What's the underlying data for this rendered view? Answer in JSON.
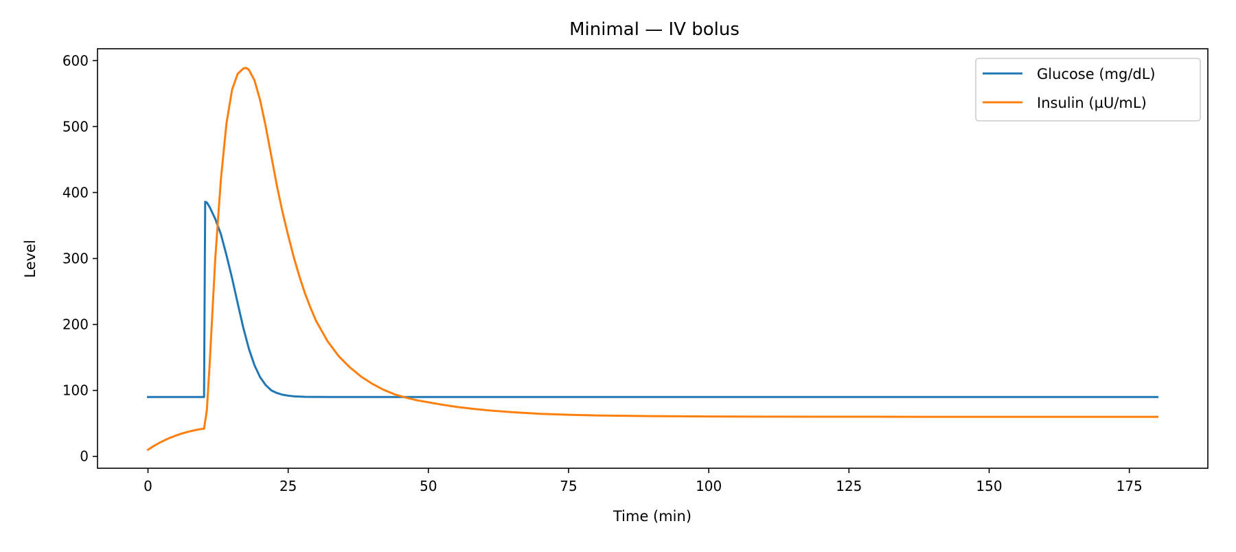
{
  "chart_data": {
    "type": "line",
    "title": "Minimal — IV bolus",
    "xlabel": "Time (min)",
    "ylabel": "Level",
    "xlim": [
      -9,
      189
    ],
    "ylim": [
      -18,
      618
    ],
    "xticks": [
      0,
      25,
      50,
      75,
      100,
      125,
      150,
      175
    ],
    "yticks": [
      0,
      100,
      200,
      300,
      400,
      500,
      600
    ],
    "grid": false,
    "legend_position": "top-right",
    "series": [
      {
        "name": "Glucose (mg/dL)",
        "color": "#1f77b4",
        "x": [
          0,
          2,
          4,
          6,
          8,
          10,
          10.2,
          10.5,
          11,
          12,
          13,
          14,
          15,
          16,
          17,
          18,
          19,
          20,
          21,
          22,
          23,
          24,
          25,
          26,
          27,
          28,
          30,
          33,
          36,
          40,
          50,
          60,
          80,
          100,
          120,
          140,
          160,
          180
        ],
        "y": [
          90,
          90,
          90,
          90,
          90,
          90,
          386,
          385,
          378,
          360,
          337,
          305,
          270,
          232,
          195,
          163,
          138,
          120,
          108,
          100,
          96,
          93.5,
          92,
          91,
          90.6,
          90.3,
          90.1,
          90,
          90,
          90,
          90,
          90,
          90,
          90,
          90,
          90,
          90,
          90
        ]
      },
      {
        "name": "Insulin (µU/mL)",
        "color": "#ff7f0e",
        "x": [
          0,
          1,
          2,
          3,
          4,
          5,
          6,
          7,
          8,
          9,
          10,
          10.5,
          11,
          11.5,
          12,
          13,
          14,
          15,
          16,
          17,
          17.5,
          18,
          19,
          20,
          21,
          22,
          23,
          24,
          25,
          26,
          27,
          28,
          29,
          30,
          32,
          34,
          36,
          38,
          40,
          42,
          44,
          46,
          48,
          50,
          52,
          55,
          58,
          61,
          65,
          70,
          75,
          80,
          90,
          100,
          110,
          120,
          140,
          160,
          180
        ],
        "y": [
          10,
          15.5,
          20.3,
          24.6,
          28.4,
          31.6,
          34.5,
          37,
          39,
          40.8,
          42,
          70,
          140,
          220,
          300,
          420,
          505,
          556,
          580,
          588,
          589,
          586,
          570,
          540,
          500,
          455,
          410,
          370,
          335,
          302,
          273,
          247,
          225,
          205,
          175,
          152,
          135,
          121,
          110,
          101,
          94,
          89,
          85,
          82,
          79,
          75,
          72,
          69.5,
          67,
          64.5,
          63,
          62,
          61,
          60.5,
          60.2,
          60.1,
          60,
          60,
          60
        ]
      }
    ]
  }
}
